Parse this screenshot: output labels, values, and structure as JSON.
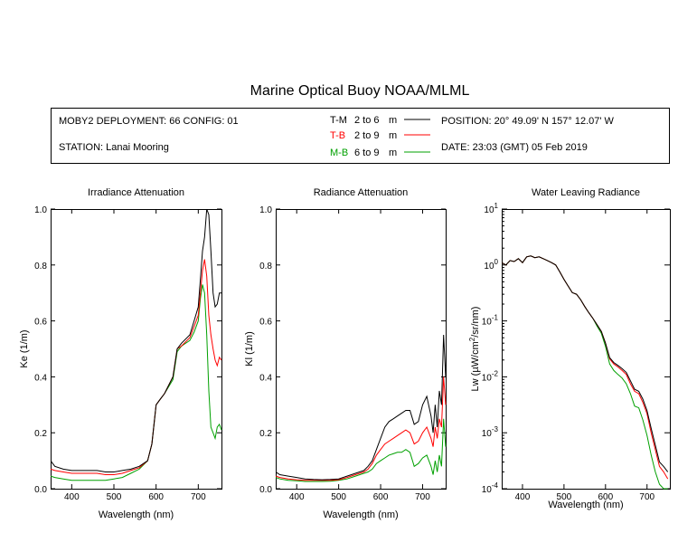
{
  "title": "Marine Optical Buoy NOAA/MLML",
  "info": {
    "deployment": "MOBY2 DEPLOYMENT: 66 CONFIG: 01",
    "station": "STATION: Lanai Mooring",
    "position": "POSITION: 20° 49.09' N   157° 12.07' W",
    "date": "DATE: 23:03 (GMT) 05 Feb 2019",
    "legend": [
      {
        "code": "T-M",
        "range": "2 to 6",
        "unit": "m",
        "color": "#000000"
      },
      {
        "code": "T-B",
        "range": "2 to 9",
        "unit": "m",
        "color": "#ff0000"
      },
      {
        "code": "M-B",
        "range": "6 to 9",
        "unit": "m",
        "color": "#00a000"
      }
    ]
  },
  "chart_data": [
    {
      "type": "line",
      "title": "Irradiance Attenuation",
      "xlabel": "Wavelength (nm)",
      "ylabel": "Ke (1/m)",
      "xlim": [
        350,
        755
      ],
      "ylim": [
        0,
        1
      ],
      "xticks": [
        400,
        500,
        600,
        700
      ],
      "yticks": [
        0.0,
        0.2,
        0.4,
        0.6,
        0.8,
        1.0
      ],
      "ytick_labels": [
        "0.0",
        "0.2",
        "0.4",
        "0.6",
        "0.8",
        "1.0"
      ],
      "x": [
        350,
        360,
        380,
        400,
        420,
        440,
        460,
        480,
        500,
        520,
        540,
        560,
        580,
        590,
        600,
        610,
        620,
        640,
        650,
        660,
        680,
        690,
        700,
        705,
        710,
        715,
        720,
        725,
        730,
        735,
        740,
        745,
        750,
        755
      ],
      "series": [
        {
          "name": "T-M",
          "color": "#000000",
          "values": [
            0.1,
            0.08,
            0.07,
            0.065,
            0.065,
            0.065,
            0.065,
            0.06,
            0.06,
            0.065,
            0.07,
            0.08,
            0.1,
            0.16,
            0.3,
            0.32,
            0.34,
            0.4,
            0.5,
            0.52,
            0.55,
            0.6,
            0.65,
            0.75,
            0.85,
            0.9,
            1.0,
            0.98,
            0.85,
            0.7,
            0.65,
            0.66,
            0.7,
            0.7
          ]
        },
        {
          "name": "T-B",
          "color": "#ff0000",
          "values": [
            0.07,
            0.065,
            0.06,
            0.055,
            0.055,
            0.055,
            0.055,
            0.05,
            0.05,
            0.055,
            0.065,
            0.075,
            0.1,
            0.16,
            0.3,
            0.32,
            0.34,
            0.4,
            0.5,
            0.51,
            0.54,
            0.58,
            0.62,
            0.7,
            0.78,
            0.82,
            0.76,
            0.62,
            0.55,
            0.5,
            0.46,
            0.44,
            0.47,
            0.46
          ]
        },
        {
          "name": "M-B",
          "color": "#00a000",
          "values": [
            0.045,
            0.04,
            0.035,
            0.03,
            0.03,
            0.03,
            0.03,
            0.03,
            0.035,
            0.04,
            0.055,
            0.07,
            0.1,
            0.16,
            0.3,
            0.32,
            0.34,
            0.39,
            0.49,
            0.51,
            0.53,
            0.56,
            0.6,
            0.68,
            0.73,
            0.7,
            0.55,
            0.35,
            0.22,
            0.2,
            0.18,
            0.22,
            0.23,
            0.21
          ]
        }
      ]
    },
    {
      "type": "line",
      "title": "Radiance Attenuation",
      "xlabel": "Wavelength (nm)",
      "ylabel": "Kl (1/m)",
      "xlim": [
        350,
        755
      ],
      "ylim": [
        0,
        1
      ],
      "xticks": [
        400,
        500,
        600,
        700
      ],
      "yticks": [
        0.0,
        0.2,
        0.4,
        0.6,
        0.8,
        1.0
      ],
      "ytick_labels": [
        "0.0",
        "0.2",
        "0.4",
        "0.6",
        "0.8",
        "1.0"
      ],
      "x": [
        350,
        360,
        380,
        400,
        420,
        440,
        460,
        480,
        500,
        520,
        540,
        560,
        570,
        580,
        590,
        600,
        610,
        620,
        630,
        640,
        650,
        660,
        670,
        680,
        690,
        700,
        710,
        720,
        725,
        730,
        735,
        740,
        745,
        750,
        755
      ],
      "series": [
        {
          "name": "T-M",
          "color": "#000000",
          "values": [
            0.06,
            0.05,
            0.045,
            0.04,
            0.035,
            0.033,
            0.032,
            0.033,
            0.035,
            0.045,
            0.055,
            0.065,
            0.08,
            0.1,
            0.14,
            0.18,
            0.22,
            0.24,
            0.25,
            0.26,
            0.27,
            0.28,
            0.28,
            0.23,
            0.24,
            0.3,
            0.33,
            0.26,
            0.2,
            0.3,
            0.22,
            0.35,
            0.3,
            0.55,
            0.4
          ]
        },
        {
          "name": "T-B",
          "color": "#ff0000",
          "values": [
            0.045,
            0.04,
            0.035,
            0.032,
            0.03,
            0.03,
            0.03,
            0.03,
            0.032,
            0.04,
            0.05,
            0.06,
            0.07,
            0.09,
            0.12,
            0.14,
            0.16,
            0.17,
            0.18,
            0.19,
            0.2,
            0.21,
            0.2,
            0.16,
            0.17,
            0.2,
            0.22,
            0.18,
            0.15,
            0.22,
            0.18,
            0.25,
            0.22,
            0.4,
            0.3
          ]
        },
        {
          "name": "M-B",
          "color": "#00a000",
          "values": [
            0.04,
            0.035,
            0.03,
            0.028,
            0.026,
            0.026,
            0.026,
            0.027,
            0.03,
            0.035,
            0.045,
            0.055,
            0.06,
            0.07,
            0.09,
            0.1,
            0.11,
            0.12,
            0.125,
            0.13,
            0.13,
            0.14,
            0.13,
            0.08,
            0.09,
            0.11,
            0.12,
            0.08,
            0.05,
            0.1,
            0.06,
            0.12,
            0.08,
            0.25,
            0.15
          ]
        }
      ]
    },
    {
      "type": "line",
      "title": "Water Leaving Radiance",
      "xlabel": "Wavelength (nm)",
      "ylabel": "Lw (µW/cm²/sr/nm)",
      "yscale": "log",
      "xlim": [
        350,
        755
      ],
      "ylim": [
        0.0001,
        10
      ],
      "xticks": [
        400,
        500,
        600,
        700
      ],
      "ytick_exponents": [
        "1",
        "0",
        "-1",
        "-2",
        "-3",
        "-4"
      ],
      "x": [
        350,
        360,
        370,
        380,
        390,
        400,
        410,
        420,
        430,
        440,
        450,
        460,
        470,
        480,
        490,
        500,
        510,
        520,
        530,
        540,
        550,
        560,
        570,
        580,
        590,
        600,
        610,
        620,
        630,
        640,
        650,
        660,
        670,
        680,
        690,
        700,
        710,
        720,
        730,
        740,
        750
      ],
      "series": [
        {
          "name": "T-M",
          "color": "#000000",
          "values": [
            1.1,
            1.0,
            1.2,
            1.15,
            1.3,
            1.1,
            1.4,
            1.45,
            1.35,
            1.4,
            1.3,
            1.2,
            1.1,
            1.0,
            0.75,
            0.55,
            0.42,
            0.32,
            0.3,
            0.24,
            0.18,
            0.14,
            0.11,
            0.085,
            0.065,
            0.04,
            0.022,
            0.018,
            0.016,
            0.014,
            0.012,
            0.0085,
            0.006,
            0.0055,
            0.004,
            0.0025,
            0.0012,
            0.0006,
            0.0003,
            0.00025,
            0.0002
          ]
        },
        {
          "name": "T-B",
          "color": "#ff0000",
          "values": [
            1.1,
            1.0,
            1.2,
            1.15,
            1.3,
            1.1,
            1.4,
            1.45,
            1.35,
            1.4,
            1.3,
            1.2,
            1.1,
            1.0,
            0.75,
            0.55,
            0.42,
            0.32,
            0.3,
            0.24,
            0.18,
            0.14,
            0.11,
            0.085,
            0.065,
            0.04,
            0.021,
            0.017,
            0.015,
            0.013,
            0.011,
            0.0075,
            0.0055,
            0.005,
            0.0035,
            0.0022,
            0.001,
            0.0005,
            0.00025,
            0.0002,
            0.00015
          ]
        },
        {
          "name": "M-B",
          "color": "#00a000",
          "values": [
            1.1,
            1.0,
            1.2,
            1.15,
            1.3,
            1.1,
            1.4,
            1.45,
            1.35,
            1.4,
            1.3,
            1.2,
            1.1,
            1.0,
            0.75,
            0.55,
            0.42,
            0.32,
            0.3,
            0.24,
            0.18,
            0.14,
            0.11,
            0.08,
            0.06,
            0.035,
            0.017,
            0.013,
            0.011,
            0.0095,
            0.0075,
            0.005,
            0.003,
            0.0028,
            0.0017,
            0.0009,
            0.0004,
            0.0002,
            0.00012,
            0.0001,
            0.0001
          ]
        }
      ]
    }
  ]
}
